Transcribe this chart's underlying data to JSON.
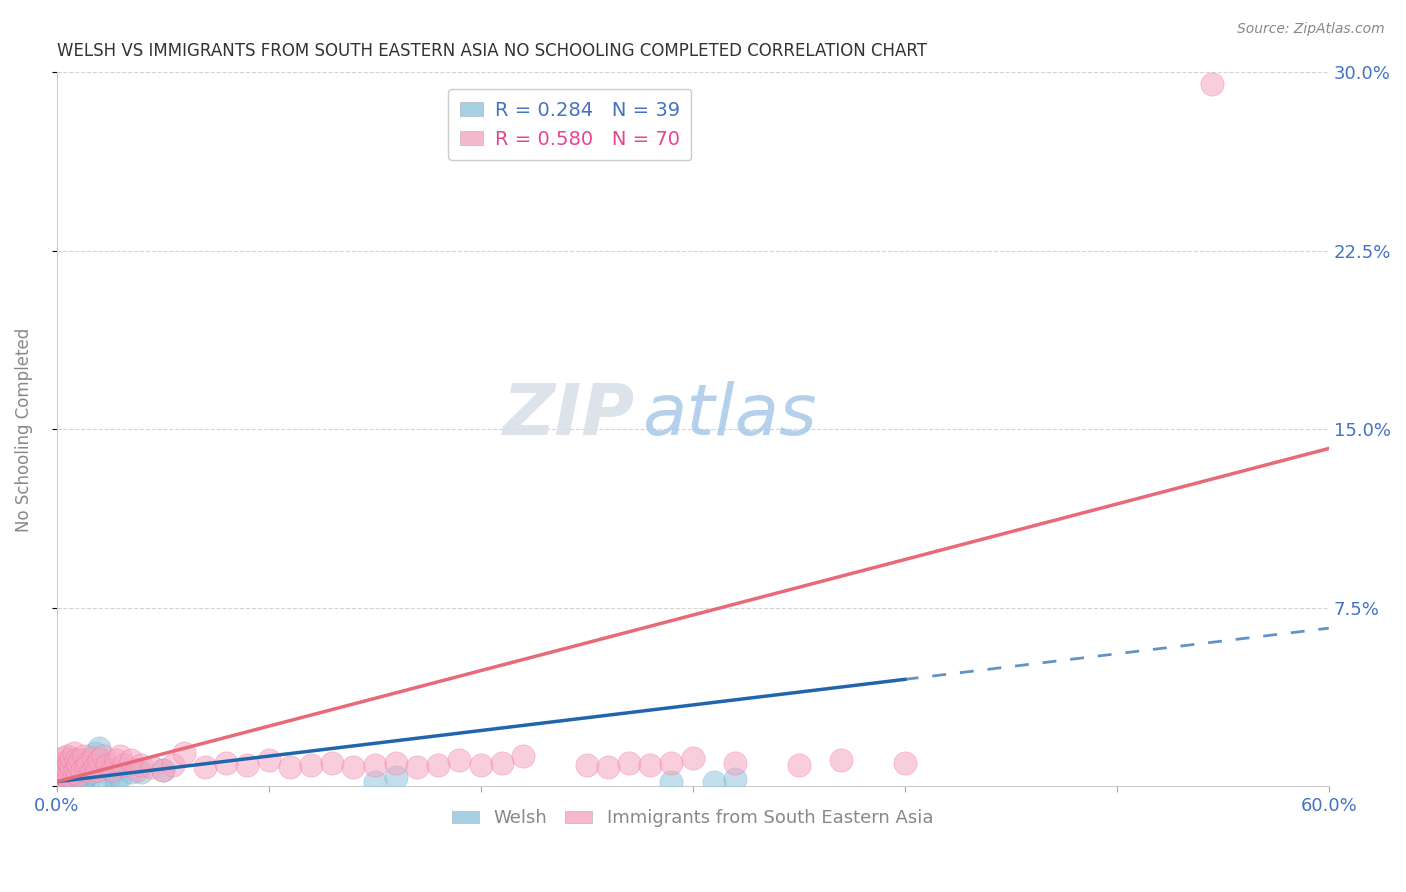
{
  "title": "WELSH VS IMMIGRANTS FROM SOUTH EASTERN ASIA NO SCHOOLING COMPLETED CORRELATION CHART",
  "source": "Source: ZipAtlas.com",
  "ylabel": "No Schooling Completed",
  "xlim": [
    0,
    0.6
  ],
  "ylim": [
    0,
    0.3
  ],
  "ytick_positions": [
    0.0,
    0.075,
    0.15,
    0.225,
    0.3
  ],
  "ytick_labels": [
    "",
    "7.5%",
    "15.0%",
    "22.5%",
    "30.0%"
  ],
  "xtick_positions": [
    0.0,
    0.1,
    0.2,
    0.3,
    0.4,
    0.5,
    0.6
  ],
  "xtick_labels": [
    "0.0%",
    "",
    "",
    "",
    "",
    "",
    "60.0%"
  ],
  "legend_labels": [
    "Welsh",
    "Immigrants from South Eastern Asia"
  ],
  "welsh_color": "#92c5de",
  "sea_color": "#f4a6c0",
  "welsh_edge_color": "#6baed6",
  "sea_edge_color": "#f768a1",
  "trendline_welsh_color": "#2166ac",
  "trendline_sea_color": "#e8697a",
  "background_color": "#ffffff",
  "grid_color": "#d0d0d0",
  "title_color": "#333333",
  "tick_label_color": "#4472c4",
  "welsh_R": 0.284,
  "sea_R": 0.58,
  "welsh_N": 39,
  "sea_N": 70,
  "welsh_x": [
    0.001,
    0.001,
    0.002,
    0.002,
    0.003,
    0.003,
    0.003,
    0.004,
    0.004,
    0.005,
    0.005,
    0.005,
    0.006,
    0.006,
    0.007,
    0.007,
    0.008,
    0.008,
    0.009,
    0.009,
    0.01,
    0.011,
    0.012,
    0.013,
    0.015,
    0.018,
    0.02,
    0.022,
    0.025,
    0.028,
    0.03,
    0.035,
    0.04,
    0.05,
    0.15,
    0.16,
    0.29,
    0.31,
    0.32
  ],
  "welsh_y": [
    0.002,
    0.003,
    0.001,
    0.004,
    0.002,
    0.003,
    0.001,
    0.003,
    0.002,
    0.001,
    0.002,
    0.003,
    0.002,
    0.001,
    0.003,
    0.002,
    0.002,
    0.001,
    0.003,
    0.002,
    0.002,
    0.001,
    0.002,
    0.003,
    0.001,
    0.014,
    0.016,
    0.003,
    0.005,
    0.003,
    0.004,
    0.006,
    0.006,
    0.007,
    0.002,
    0.004,
    0.002,
    0.002,
    0.003
  ],
  "sea_x": [
    0.001,
    0.001,
    0.002,
    0.002,
    0.003,
    0.003,
    0.004,
    0.004,
    0.005,
    0.005,
    0.006,
    0.006,
    0.007,
    0.007,
    0.008,
    0.008,
    0.009,
    0.009,
    0.01,
    0.01,
    0.011,
    0.012,
    0.013,
    0.014,
    0.015,
    0.016,
    0.017,
    0.018,
    0.019,
    0.02,
    0.022,
    0.024,
    0.026,
    0.028,
    0.03,
    0.032,
    0.035,
    0.038,
    0.04,
    0.045,
    0.05,
    0.055,
    0.06,
    0.07,
    0.08,
    0.09,
    0.1,
    0.11,
    0.12,
    0.13,
    0.14,
    0.15,
    0.16,
    0.17,
    0.18,
    0.19,
    0.2,
    0.21,
    0.22,
    0.25,
    0.26,
    0.27,
    0.28,
    0.29,
    0.3,
    0.32,
    0.35,
    0.37,
    0.4,
    0.545
  ],
  "sea_y": [
    0.005,
    0.008,
    0.006,
    0.01,
    0.007,
    0.012,
    0.005,
    0.009,
    0.008,
    0.013,
    0.005,
    0.01,
    0.008,
    0.012,
    0.006,
    0.014,
    0.007,
    0.011,
    0.005,
    0.009,
    0.011,
    0.007,
    0.013,
    0.008,
    0.01,
    0.006,
    0.012,
    0.008,
    0.007,
    0.011,
    0.013,
    0.009,
    0.007,
    0.011,
    0.013,
    0.009,
    0.011,
    0.007,
    0.009,
    0.008,
    0.007,
    0.009,
    0.014,
    0.008,
    0.01,
    0.009,
    0.011,
    0.008,
    0.009,
    0.01,
    0.008,
    0.009,
    0.01,
    0.008,
    0.009,
    0.011,
    0.009,
    0.01,
    0.013,
    0.009,
    0.008,
    0.01,
    0.009,
    0.01,
    0.012,
    0.01,
    0.009,
    0.011,
    0.01,
    0.295
  ],
  "welsh_trendline_x0": 0.0,
  "welsh_trendline_y0": 0.002,
  "welsh_trendline_x1": 0.4,
  "welsh_trendline_y1": 0.045,
  "welsh_trendline_dash_x0": 0.4,
  "welsh_trendline_dash_x1": 0.6,
  "sea_trendline_x0": 0.0,
  "sea_trendline_y0": 0.002,
  "sea_trendline_x1": 0.6,
  "sea_trendline_y1": 0.142
}
